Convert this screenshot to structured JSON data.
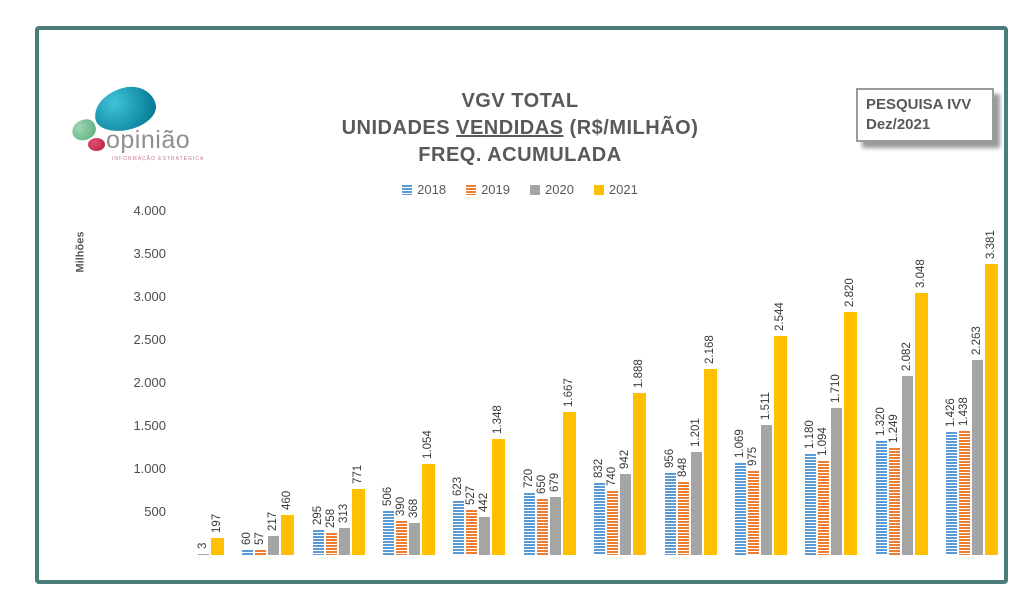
{
  "logo": {
    "brand": "opinião",
    "tagline": "INFORMAÇÃO ESTRATÉGICA"
  },
  "badge": {
    "line1": "PESQUISA IVV",
    "line2": "Dez/2021"
  },
  "title": {
    "line1": "VGV TOTAL",
    "line2_pre": "UNIDADES ",
    "line2_underlined": "VENDIDAS",
    "line2_post": " (R$/MILHÃO)",
    "line3": "FREQ. ACUMULADA"
  },
  "colors": {
    "frame": "#4A7C7A",
    "title_text": "#595959",
    "data_label": "#3A3A3A",
    "series_2018": "#5B9BD5",
    "series_2019": "#ED7D31",
    "series_2020": "#A5A5A5",
    "series_2021": "#FFC000"
  },
  "y_axis": {
    "title": "Milhões",
    "ticks": [
      "4.000",
      "3.500",
      "3.000",
      "2.500",
      "2.000",
      "1.500",
      "1.000",
      "500"
    ],
    "max": 4000,
    "tick_step": 500
  },
  "chart_data": {
    "type": "bar",
    "title": "VGV TOTAL UNIDADES VENDIDAS (R$/MILHÃO) FREQ. ACUMULADA",
    "ylabel": "Milhões",
    "ylim": [
      0,
      4000
    ],
    "grid": false,
    "legend_position": "top",
    "categories": [
      "",
      "",
      "",
      "",
      "",
      "",
      "",
      "",
      "",
      "",
      "",
      ""
    ],
    "series": [
      {
        "name": "2018",
        "color": "#5B9BD5",
        "pattern": "striped",
        "values": [
          null,
          60,
          295,
          506,
          623,
          720,
          832,
          956,
          1069,
          1180,
          1320,
          1426
        ],
        "labels": [
          "",
          "60",
          "295",
          "506",
          "623",
          "720",
          "832",
          "956",
          "1.069",
          "1.180",
          "1.320",
          "1.426"
        ]
      },
      {
        "name": "2019",
        "color": "#ED7D31",
        "pattern": "striped",
        "values": [
          null,
          57,
          258,
          390,
          527,
          650,
          740,
          848,
          975,
          1094,
          1249,
          1438
        ],
        "labels": [
          "",
          "57",
          "258",
          "390",
          "527",
          "650",
          "740",
          "848",
          "975",
          "1.094",
          "1.249",
          "1.438"
        ]
      },
      {
        "name": "2020",
        "color": "#A5A5A5",
        "pattern": "solid",
        "values": [
          3,
          217,
          313,
          368,
          442,
          679,
          942,
          1201,
          1511,
          1710,
          2082,
          2263
        ],
        "labels": [
          "3",
          "217",
          "313",
          "368",
          "442",
          "679",
          "942",
          "1.201",
          "1.511",
          "1.710",
          "2.082",
          "2.263"
        ]
      },
      {
        "name": "2021",
        "color": "#FFC000",
        "pattern": "solid",
        "values": [
          197,
          460,
          771,
          1054,
          1348,
          1667,
          1888,
          2168,
          2544,
          2820,
          3048,
          3381
        ],
        "labels": [
          "197",
          "460",
          "771",
          "1.054",
          "1.348",
          "1.667",
          "1.888",
          "2.168",
          "2.544",
          "2.820",
          "3.048",
          "3.381"
        ]
      }
    ]
  },
  "legend": {
    "items": [
      {
        "label": "2018",
        "color": "#5B9BD5",
        "pattern": "striped-blue"
      },
      {
        "label": "2019",
        "color": "#ED7D31",
        "pattern": "striped-orange"
      },
      {
        "label": "2020",
        "color": "#A5A5A5",
        "pattern": "solid"
      },
      {
        "label": "2021",
        "color": "#FFC000",
        "pattern": "solid"
      }
    ]
  }
}
